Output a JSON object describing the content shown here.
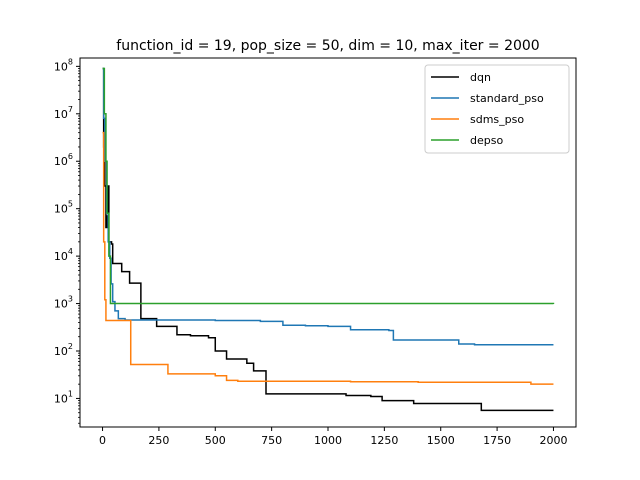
{
  "chart_data": {
    "type": "line",
    "title": "function_id = 19, pop_size = 50, dim = 10, max_iter = 2000",
    "xlabel": "",
    "ylabel": "",
    "yscale": "log",
    "xlim": [
      -100,
      2100
    ],
    "ylim": [
      2.5,
      150000000
    ],
    "xticks": [
      0,
      250,
      500,
      750,
      1000,
      1250,
      1500,
      1750,
      2000
    ],
    "yticks": [
      {
        "value": 10,
        "label": "10",
        "exp": "1"
      },
      {
        "value": 100,
        "label": "10",
        "exp": "2"
      },
      {
        "value": 1000,
        "label": "10",
        "exp": "3"
      },
      {
        "value": 10000,
        "label": "10",
        "exp": "4"
      },
      {
        "value": 100000,
        "label": "10",
        "exp": "5"
      },
      {
        "value": 1000000,
        "label": "10",
        "exp": "6"
      },
      {
        "value": 10000000,
        "label": "10",
        "exp": "7"
      },
      {
        "value": 100000000,
        "label": "10",
        "exp": "8"
      }
    ],
    "grid": false,
    "legend": "top-right",
    "series": [
      {
        "name": "dqn",
        "color": "#000000",
        "step": true,
        "points": [
          [
            0,
            90000000
          ],
          [
            5,
            2000000
          ],
          [
            10,
            300000
          ],
          [
            15,
            40000
          ],
          [
            20,
            70000
          ],
          [
            25,
            300000
          ],
          [
            28,
            20000
          ],
          [
            40,
            18000
          ],
          [
            45,
            7000
          ],
          [
            85,
            4700
          ],
          [
            120,
            2700
          ],
          [
            170,
            480
          ],
          [
            240,
            330
          ],
          [
            330,
            220
          ],
          [
            390,
            210
          ],
          [
            470,
            190
          ],
          [
            500,
            100
          ],
          [
            550,
            68
          ],
          [
            640,
            55
          ],
          [
            670,
            38
          ],
          [
            725,
            12.5
          ],
          [
            1080,
            11.5
          ],
          [
            1190,
            11.0
          ],
          [
            1240,
            9.0
          ],
          [
            1380,
            7.8
          ],
          [
            1680,
            5.6
          ],
          [
            2000,
            5.6
          ]
        ]
      },
      {
        "name": "standard_pso",
        "color": "#1f77b4",
        "step": true,
        "points": [
          [
            0,
            90000000
          ],
          [
            5,
            8000000
          ],
          [
            10,
            1000000
          ],
          [
            18,
            80000
          ],
          [
            25,
            20000
          ],
          [
            32,
            9000
          ],
          [
            38,
            2600
          ],
          [
            45,
            1100
          ],
          [
            55,
            700
          ],
          [
            70,
            480
          ],
          [
            100,
            450
          ],
          [
            500,
            440
          ],
          [
            700,
            420
          ],
          [
            800,
            350
          ],
          [
            900,
            340
          ],
          [
            1000,
            330
          ],
          [
            1100,
            280
          ],
          [
            1270,
            270
          ],
          [
            1290,
            170
          ],
          [
            1580,
            140
          ],
          [
            1650,
            135
          ],
          [
            2000,
            135
          ]
        ]
      },
      {
        "name": "sdms_pso",
        "color": "#ff7f0e",
        "step": true,
        "points": [
          [
            0,
            4000000
          ],
          [
            5,
            20000
          ],
          [
            10,
            1200
          ],
          [
            15,
            440
          ],
          [
            120,
            440
          ],
          [
            125,
            52
          ],
          [
            290,
            33
          ],
          [
            500,
            30
          ],
          [
            550,
            24
          ],
          [
            600,
            23
          ],
          [
            1100,
            22.5
          ],
          [
            1400,
            22
          ],
          [
            1900,
            20
          ],
          [
            2000,
            20
          ]
        ]
      },
      {
        "name": "depso",
        "color": "#2ca02c",
        "step": true,
        "points": [
          [
            0,
            90000000
          ],
          [
            8,
            10000000
          ],
          [
            15,
            1000000
          ],
          [
            20,
            80000
          ],
          [
            28,
            10000
          ],
          [
            35,
            1000
          ],
          [
            2000,
            980
          ]
        ]
      }
    ]
  }
}
